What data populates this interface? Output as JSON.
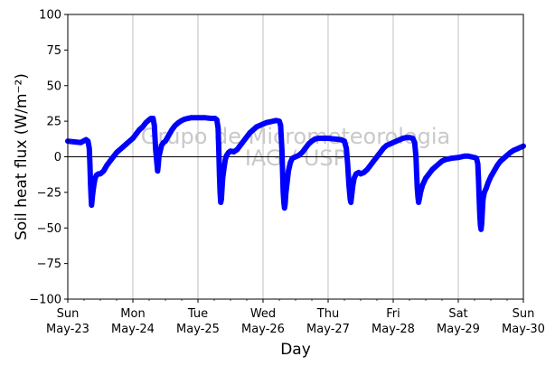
{
  "chart_data": {
    "type": "line",
    "ylabel": "Soil heat flux (W/m⁻²)",
    "xlabel": "Day",
    "watermark": [
      "Grupo de Micrometeorologia",
      "IAG / USP"
    ],
    "ylim": [
      -100,
      100
    ],
    "xlim": [
      0,
      7
    ],
    "yticks": [
      -100,
      -75,
      -50,
      -25,
      0,
      25,
      50,
      75,
      100
    ],
    "xticks": [
      {
        "x": 0,
        "day": "Sun",
        "date": "May-23"
      },
      {
        "x": 1,
        "day": "Mon",
        "date": "May-24"
      },
      {
        "x": 2,
        "day": "Tue",
        "date": "May-25"
      },
      {
        "x": 3,
        "day": "Wed",
        "date": "May-26"
      },
      {
        "x": 4,
        "day": "Thu",
        "date": "May-27"
      },
      {
        "x": 5,
        "day": "Fri",
        "date": "May-28"
      },
      {
        "x": 6,
        "day": "Sat",
        "date": "May-29"
      },
      {
        "x": 7,
        "day": "Sun",
        "date": "May-30"
      }
    ],
    "grid": "vertical-major",
    "zero_line": true,
    "series": [
      {
        "color": "#0000ff",
        "marker": "circle",
        "points": [
          [
            0.0,
            11
          ],
          [
            0.1,
            10.5
          ],
          [
            0.2,
            10
          ],
          [
            0.24,
            11
          ],
          [
            0.28,
            12
          ],
          [
            0.31,
            11
          ],
          [
            0.33,
            6
          ],
          [
            0.34,
            -5
          ],
          [
            0.35,
            -20
          ],
          [
            0.36,
            -30
          ],
          [
            0.365,
            -34
          ],
          [
            0.37,
            -32
          ],
          [
            0.38,
            -27
          ],
          [
            0.4,
            -20
          ],
          [
            0.42,
            -15
          ],
          [
            0.44,
            -13
          ],
          [
            0.47,
            -12
          ],
          [
            0.5,
            -12
          ],
          [
            0.55,
            -10
          ],
          [
            0.6,
            -6
          ],
          [
            0.65,
            -3
          ],
          [
            0.7,
            0
          ],
          [
            0.75,
            3
          ],
          [
            0.8,
            5
          ],
          [
            0.85,
            7
          ],
          [
            0.9,
            9
          ],
          [
            0.95,
            11
          ],
          [
            1.0,
            13
          ],
          [
            1.05,
            16
          ],
          [
            1.1,
            19
          ],
          [
            1.15,
            21
          ],
          [
            1.2,
            24
          ],
          [
            1.25,
            26
          ],
          [
            1.28,
            27
          ],
          [
            1.31,
            27
          ],
          [
            1.33,
            22
          ],
          [
            1.35,
            5
          ],
          [
            1.37,
            -5
          ],
          [
            1.38,
            -10
          ],
          [
            1.39,
            -6
          ],
          [
            1.4,
            0
          ],
          [
            1.42,
            4
          ],
          [
            1.44,
            8
          ],
          [
            1.47,
            10
          ],
          [
            1.5,
            11
          ],
          [
            1.55,
            15
          ],
          [
            1.6,
            19
          ],
          [
            1.65,
            22
          ],
          [
            1.7,
            24
          ],
          [
            1.75,
            25.5
          ],
          [
            1.8,
            26.5
          ],
          [
            1.85,
            27
          ],
          [
            1.9,
            27.5
          ],
          [
            2.0,
            27.5
          ],
          [
            2.1,
            27.5
          ],
          [
            2.2,
            27
          ],
          [
            2.26,
            27
          ],
          [
            2.29,
            26
          ],
          [
            2.31,
            20
          ],
          [
            2.32,
            5
          ],
          [
            2.33,
            -12
          ],
          [
            2.34,
            -25
          ],
          [
            2.35,
            -32
          ],
          [
            2.36,
            -30
          ],
          [
            2.37,
            -22
          ],
          [
            2.38,
            -15
          ],
          [
            2.4,
            -8
          ],
          [
            2.42,
            -2
          ],
          [
            2.44,
            1
          ],
          [
            2.47,
            3
          ],
          [
            2.5,
            4
          ],
          [
            2.55,
            3.5
          ],
          [
            2.6,
            5
          ],
          [
            2.65,
            8
          ],
          [
            2.7,
            11
          ],
          [
            2.75,
            14
          ],
          [
            2.8,
            17
          ],
          [
            2.85,
            19
          ],
          [
            2.9,
            21
          ],
          [
            2.95,
            22
          ],
          [
            3.0,
            23
          ],
          [
            3.05,
            24
          ],
          [
            3.1,
            24.5
          ],
          [
            3.15,
            25
          ],
          [
            3.2,
            25.5
          ],
          [
            3.25,
            25
          ],
          [
            3.27,
            22
          ],
          [
            3.29,
            5
          ],
          [
            3.3,
            -10
          ],
          [
            3.31,
            -25
          ],
          [
            3.32,
            -32
          ],
          [
            3.33,
            -36
          ],
          [
            3.34,
            -33
          ],
          [
            3.35,
            -26
          ],
          [
            3.37,
            -18
          ],
          [
            3.39,
            -10
          ],
          [
            3.42,
            -4
          ],
          [
            3.45,
            -1
          ],
          [
            3.5,
            0
          ],
          [
            3.55,
            1
          ],
          [
            3.6,
            3
          ],
          [
            3.65,
            6
          ],
          [
            3.7,
            9
          ],
          [
            3.75,
            11
          ],
          [
            3.8,
            12.5
          ],
          [
            3.85,
            13
          ],
          [
            3.9,
            13
          ],
          [
            4.0,
            13
          ],
          [
            4.1,
            12.5
          ],
          [
            4.2,
            12
          ],
          [
            4.25,
            11
          ],
          [
            4.28,
            6
          ],
          [
            4.3,
            -5
          ],
          [
            4.32,
            -20
          ],
          [
            4.34,
            -30
          ],
          [
            4.35,
            -32
          ],
          [
            4.36,
            -28
          ],
          [
            4.38,
            -20
          ],
          [
            4.4,
            -15
          ],
          [
            4.43,
            -12
          ],
          [
            4.47,
            -11
          ],
          [
            4.5,
            -12
          ],
          [
            4.55,
            -11
          ],
          [
            4.6,
            -9
          ],
          [
            4.65,
            -6
          ],
          [
            4.7,
            -3
          ],
          [
            4.75,
            0
          ],
          [
            4.8,
            3
          ],
          [
            4.85,
            6
          ],
          [
            4.9,
            8
          ],
          [
            4.95,
            9
          ],
          [
            5.0,
            10
          ],
          [
            5.05,
            11
          ],
          [
            5.1,
            12
          ],
          [
            5.15,
            13
          ],
          [
            5.2,
            13.5
          ],
          [
            5.25,
            13.5
          ],
          [
            5.3,
            13
          ],
          [
            5.33,
            10
          ],
          [
            5.35,
            0
          ],
          [
            5.36,
            -12
          ],
          [
            5.37,
            -22
          ],
          [
            5.38,
            -28
          ],
          [
            5.39,
            -32
          ],
          [
            5.4,
            -30
          ],
          [
            5.42,
            -25
          ],
          [
            5.45,
            -20
          ],
          [
            5.5,
            -15
          ],
          [
            5.55,
            -12
          ],
          [
            5.6,
            -9
          ],
          [
            5.65,
            -7
          ],
          [
            5.7,
            -5
          ],
          [
            5.75,
            -3
          ],
          [
            5.8,
            -2
          ],
          [
            5.85,
            -1.5
          ],
          [
            5.9,
            -1
          ],
          [
            6.0,
            -0.5
          ],
          [
            6.05,
            0
          ],
          [
            6.1,
            0.5
          ],
          [
            6.15,
            0.5
          ],
          [
            6.2,
            0
          ],
          [
            6.25,
            -0.5
          ],
          [
            6.28,
            -1
          ],
          [
            6.3,
            -5
          ],
          [
            6.31,
            -15
          ],
          [
            6.32,
            -28
          ],
          [
            6.33,
            -40
          ],
          [
            6.34,
            -48
          ],
          [
            6.35,
            -51
          ],
          [
            6.36,
            -47
          ],
          [
            6.37,
            -38
          ],
          [
            6.38,
            -30
          ],
          [
            6.4,
            -25
          ],
          [
            6.43,
            -22
          ],
          [
            6.46,
            -18
          ],
          [
            6.5,
            -14
          ],
          [
            6.55,
            -10
          ],
          [
            6.6,
            -6
          ],
          [
            6.65,
            -3
          ],
          [
            6.7,
            -1
          ],
          [
            6.75,
            1
          ],
          [
            6.8,
            3
          ],
          [
            6.85,
            4.5
          ],
          [
            6.9,
            5.5
          ],
          [
            6.95,
            6.5
          ],
          [
            7.0,
            7.5
          ]
        ]
      }
    ]
  }
}
